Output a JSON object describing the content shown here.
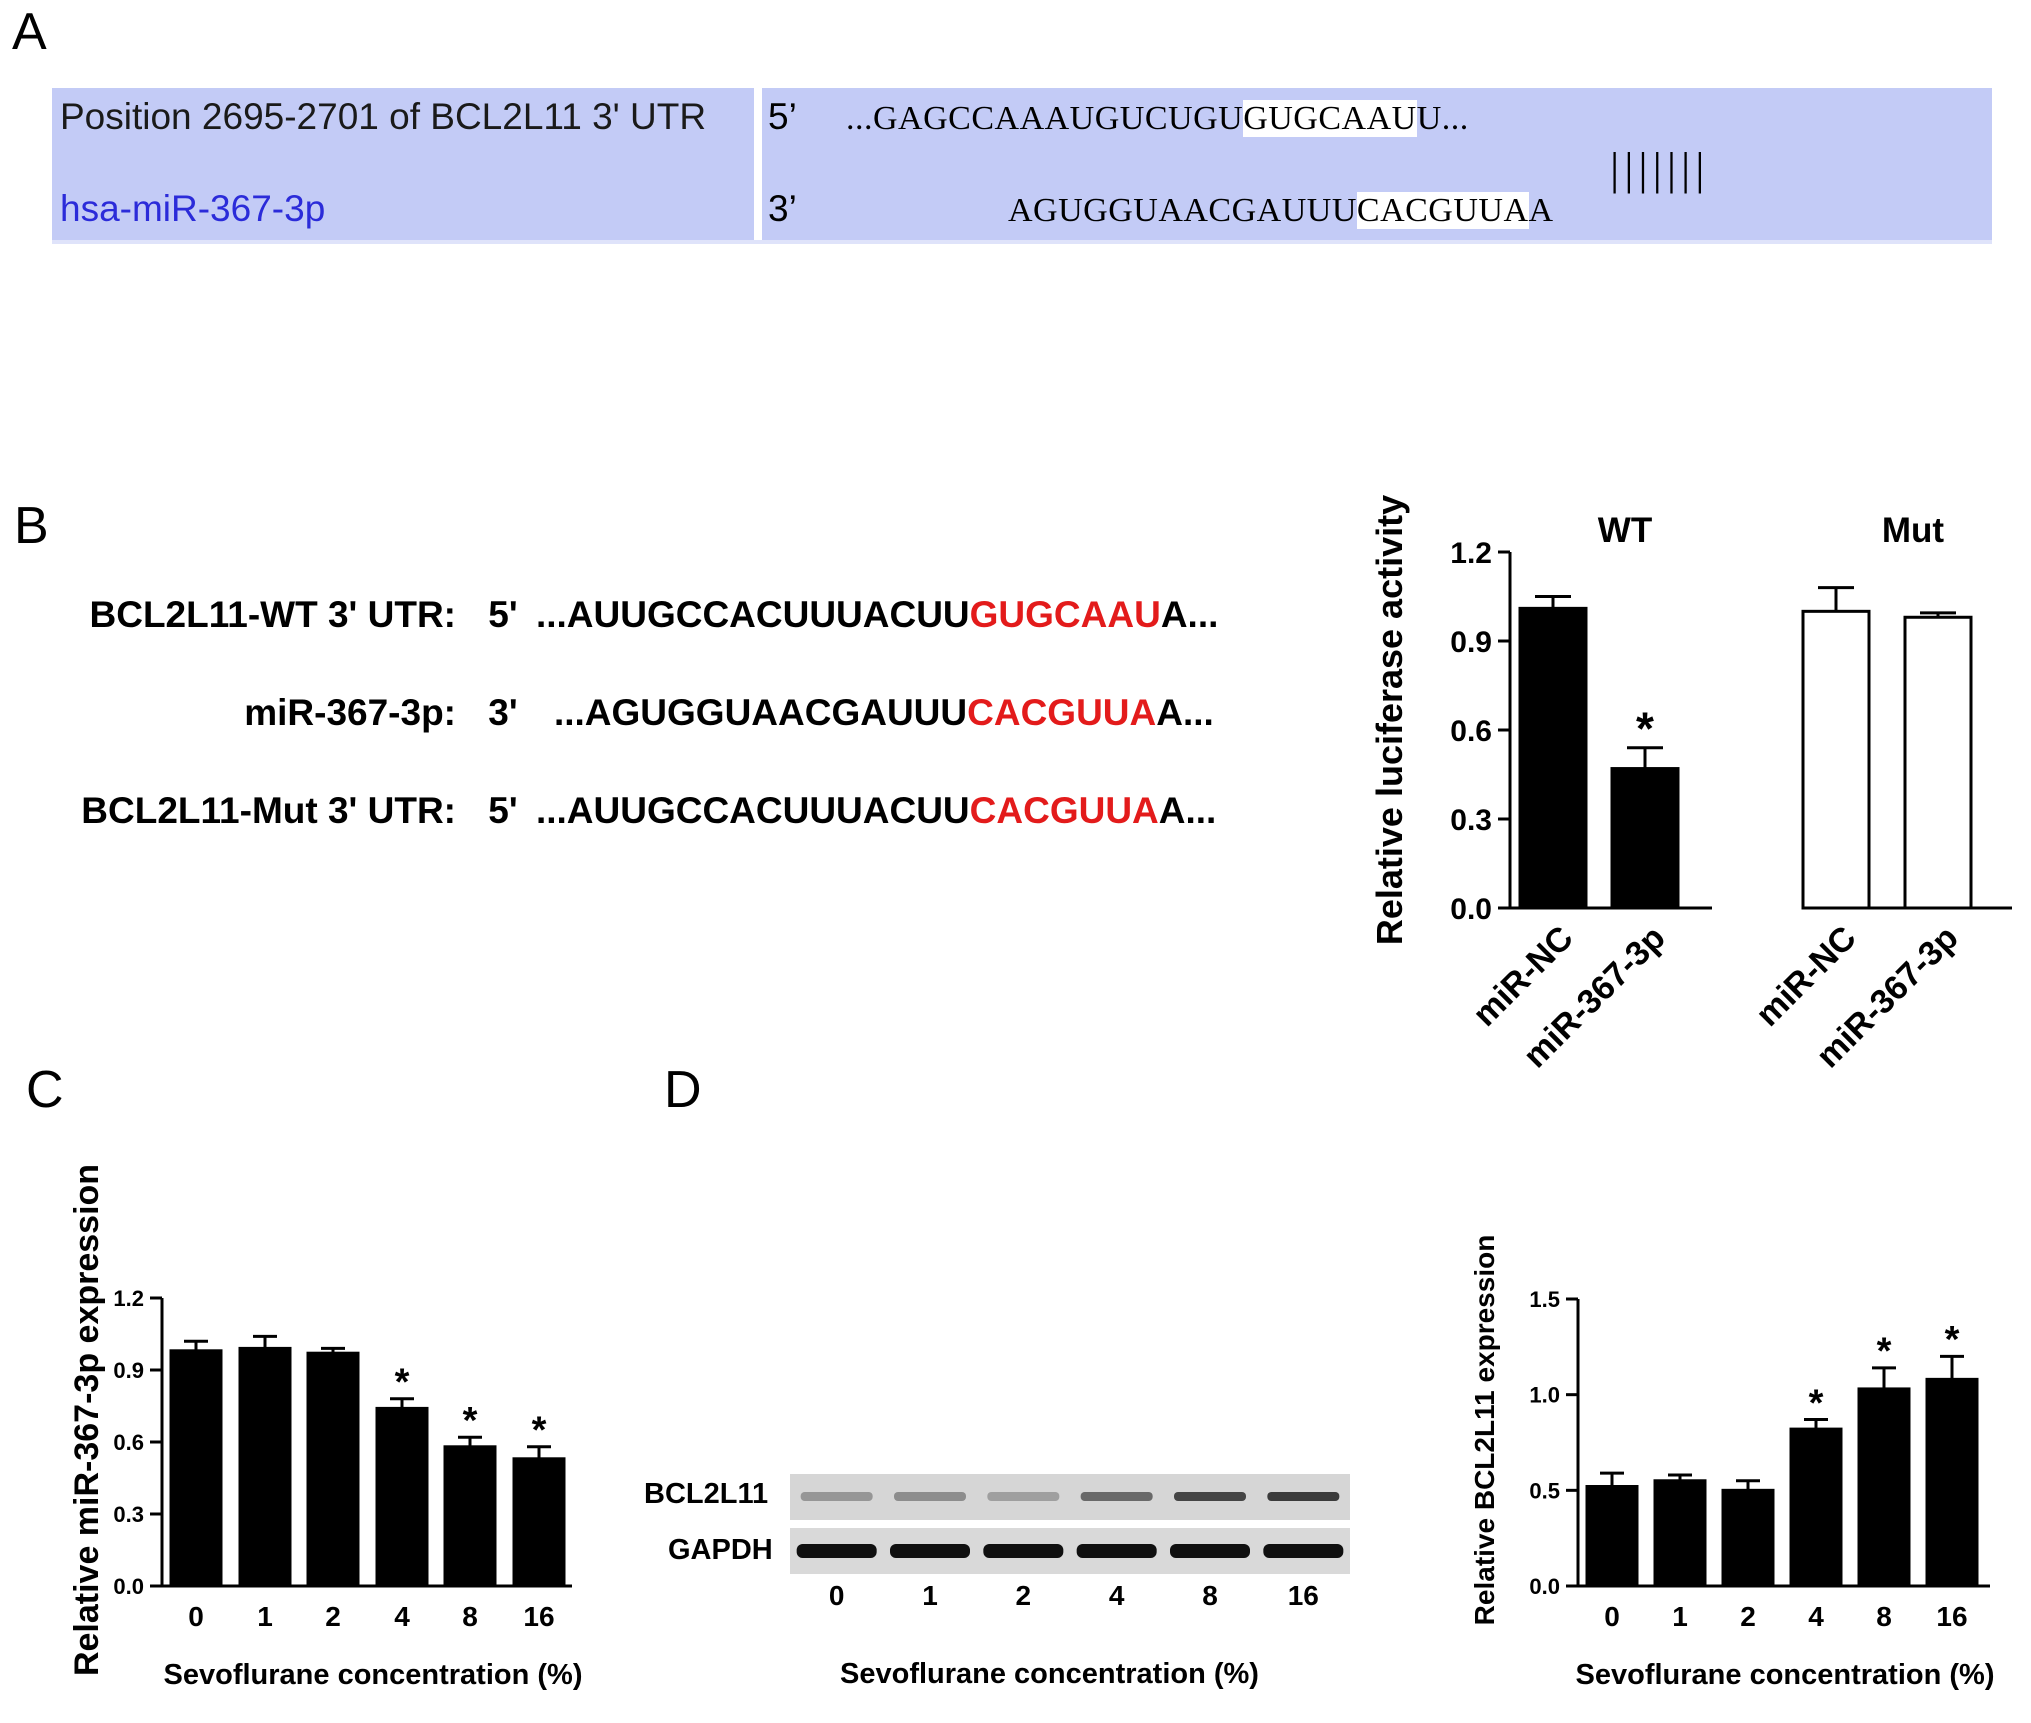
{
  "panels": {
    "a": "A",
    "b": "B",
    "c": "C",
    "d": "D"
  },
  "panel_a": {
    "row1_label": "Position 2695-2701 of BCL2L11 3' UTR",
    "row1_prime": "5’",
    "row1_seq_pre": "...GAGCCAAAUGUCUGU",
    "row1_seq_hl": "GUGCAAU",
    "row1_seq_post": "U...",
    "row2_label": "hsa-miR-367-3p",
    "row2_prime": "3’",
    "row2_seq_pre": "AGUGGUAACGAUUU",
    "row2_seq_hl": "CACGUUA",
    "row2_seq_post": "A",
    "pairing": "|||||||",
    "label_color_row2": "#2b2bd9",
    "box_color": "#c3cbf6"
  },
  "panel_b": {
    "rows": [
      {
        "label": "BCL2L11-WT 3' UTR:",
        "prime": "5'",
        "pre": "...AUUGCCACUUUACUU",
        "hl": "GUGCAAU",
        "post": "A..."
      },
      {
        "label": "miR-367-3p:",
        "prime": "3'",
        "pre": "...AGUGGUAACGAUUU",
        "hl": "CACGUUA",
        "post": "A..."
      },
      {
        "label": "BCL2L11-Mut 3' UTR:",
        "prime": "5'",
        "pre": "...AUUGCCACUUUACUU",
        "hl": "CACGUUA",
        "post": "A..."
      }
    ],
    "highlight_color": "#e31b1b"
  },
  "chart_data": [
    {
      "id": "luciferase",
      "type": "bar",
      "ylabel": "Relative luciferase activity",
      "ylim": [
        0,
        1.2
      ],
      "yticks": [
        "0.0",
        "0.3",
        "0.6",
        "0.9",
        "1.2"
      ],
      "groups": [
        "WT",
        "Mut"
      ],
      "categories": [
        "miR-NC",
        "miR-367-3p",
        "miR-NC",
        "miR-367-3p"
      ],
      "values": [
        1.01,
        0.47,
        1.0,
        0.98
      ],
      "errors": [
        0.04,
        0.07,
        0.08,
        0.015
      ],
      "fills": [
        "#000000",
        "#000000",
        "#ffffff",
        "#ffffff"
      ],
      "significance": [
        "",
        "*",
        "",
        ""
      ]
    },
    {
      "id": "mir367",
      "type": "bar",
      "xlabel": "Sevoflurane concentration (%)",
      "ylabel": "Relative miR-367-3p expression",
      "ylim": [
        0,
        1.2
      ],
      "yticks": [
        "0.0",
        "0.3",
        "0.6",
        "0.9",
        "1.2"
      ],
      "categories": [
        "0",
        "1",
        "2",
        "4",
        "8",
        "16"
      ],
      "values": [
        0.98,
        0.99,
        0.97,
        0.74,
        0.58,
        0.53
      ],
      "errors": [
        0.04,
        0.05,
        0.02,
        0.04,
        0.04,
        0.05
      ],
      "significance": [
        "",
        "",
        "",
        "*",
        "*",
        "*"
      ]
    },
    {
      "id": "bcl2l11",
      "type": "bar",
      "xlabel": "Sevoflurane concentration (%)",
      "ylabel": "Relative BCL2L11 expression",
      "ylim": [
        0,
        1.5
      ],
      "yticks": [
        "0.0",
        "0.5",
        "1.0",
        "1.5"
      ],
      "categories": [
        "0",
        "1",
        "2",
        "4",
        "8",
        "16"
      ],
      "values": [
        0.52,
        0.55,
        0.5,
        0.82,
        1.03,
        1.08
      ],
      "errors": [
        0.07,
        0.03,
        0.05,
        0.05,
        0.11,
        0.12
      ],
      "significance": [
        "",
        "",
        "",
        "*",
        "*",
        "*"
      ]
    }
  ],
  "western_blot": {
    "rows": [
      "BCL2L11",
      "GAPDH"
    ],
    "lanes": [
      "0",
      "1",
      "2",
      "4",
      "8",
      "16"
    ],
    "xlabel": "Sevoflurane concentration (%)",
    "bcl2l11_intensity": [
      0.35,
      0.4,
      0.3,
      0.6,
      0.8,
      0.85
    ],
    "gapdh_intensity": [
      1,
      1,
      1,
      1,
      1,
      1
    ]
  }
}
